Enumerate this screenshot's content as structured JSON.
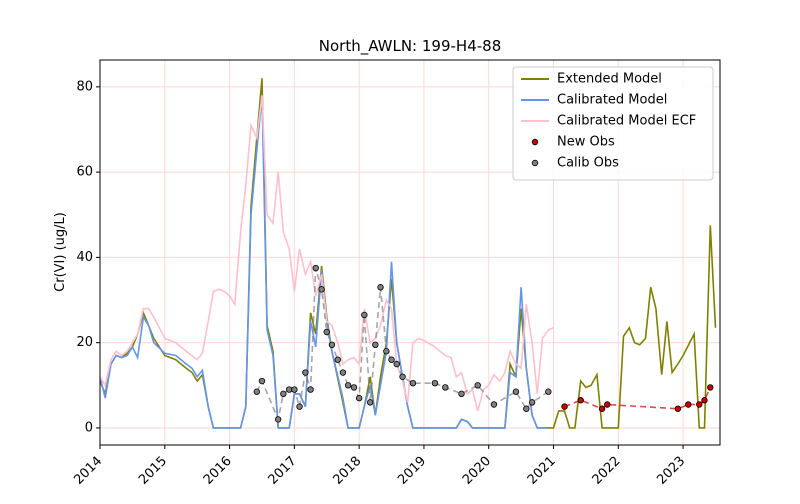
{
  "chart_data": {
    "type": "line",
    "title": "North_AWLN: 199-H4-88",
    "ylabel": "Cr(VI) (ug/L)",
    "xlim": [
      2014,
      2023.57
    ],
    "ylim": [
      -4,
      86.3
    ],
    "xticks": [
      2014,
      2015,
      2016,
      2017,
      2018,
      2019,
      2020,
      2021,
      2022,
      2023
    ],
    "yticks": [
      0,
      20,
      40,
      60,
      80
    ],
    "grid": true,
    "legend": "upper right",
    "series": [
      {
        "name": "Extended Model",
        "color": "#808000",
        "style": "line",
        "x": [
          2014.0,
          2014.08,
          2014.17,
          2014.25,
          2014.33,
          2014.42,
          2014.5,
          2014.58,
          2014.67,
          2014.75,
          2014.83,
          2015.0,
          2015.17,
          2015.33,
          2015.42,
          2015.5,
          2015.58,
          2015.67,
          2015.75,
          2016.0,
          2016.17,
          2016.25,
          2016.33,
          2016.42,
          2016.5,
          2016.58,
          2016.67,
          2016.75,
          2016.92,
          2017.0,
          2017.08,
          2017.17,
          2017.25,
          2017.33,
          2017.42,
          2017.5,
          2017.58,
          2017.75,
          2017.83,
          2018.0,
          2018.08,
          2018.17,
          2018.25,
          2018.33,
          2018.42,
          2018.5,
          2018.58,
          2018.67,
          2018.75,
          2018.83,
          2019.5,
          2019.58,
          2019.67,
          2019.75,
          2020.25,
          2020.33,
          2020.42,
          2020.5,
          2020.58,
          2020.67,
          2020.75,
          2021.0,
          2021.08,
          2021.17,
          2021.25,
          2021.33,
          2021.42,
          2021.5,
          2021.58,
          2021.67,
          2021.75,
          2022.0,
          2022.08,
          2022.17,
          2022.25,
          2022.33,
          2022.42,
          2022.5,
          2022.58,
          2022.67,
          2022.75,
          2022.83,
          2022.92,
          2023.0,
          2023.17,
          2023.25,
          2023.33,
          2023.42,
          2023.5
        ],
        "values": [
          11,
          8,
          15,
          17,
          16.5,
          17.5,
          19,
          22,
          27,
          24,
          21,
          17,
          16,
          14,
          13,
          11,
          12.5,
          5,
          0,
          0,
          0,
          5,
          52,
          68,
          82,
          24,
          18,
          0,
          0,
          8,
          8,
          5,
          27,
          22,
          38,
          26,
          18,
          6,
          0,
          0,
          5,
          12,
          3,
          12,
          20,
          35,
          20,
          12,
          5,
          0,
          0,
          2,
          1.5,
          0,
          0,
          15,
          12,
          28,
          14,
          3,
          0,
          0,
          4,
          4,
          0,
          0,
          11,
          9.5,
          10,
          12.5,
          0,
          0,
          21.5,
          23.5,
          20,
          19.5,
          21,
          33,
          28,
          12.5,
          25,
          13,
          15,
          17,
          22,
          0,
          0,
          47.5,
          23.5
        ]
      },
      {
        "name": "Calibrated Model",
        "color": "#6495ed",
        "style": "line",
        "x": [
          2014.0,
          2014.08,
          2014.17,
          2014.25,
          2014.33,
          2014.42,
          2014.5,
          2014.58,
          2014.67,
          2014.75,
          2014.83,
          2015.0,
          2015.17,
          2015.33,
          2015.42,
          2015.5,
          2015.58,
          2015.67,
          2015.75,
          2016.0,
          2016.17,
          2016.25,
          2016.33,
          2016.42,
          2016.5,
          2016.58,
          2016.67,
          2016.75,
          2016.92,
          2017.0,
          2017.08,
          2017.17,
          2017.25,
          2017.33,
          2017.42,
          2017.5,
          2017.58,
          2017.75,
          2017.83,
          2018.0,
          2018.08,
          2018.17,
          2018.25,
          2018.33,
          2018.42,
          2018.5,
          2018.58,
          2018.67,
          2018.75,
          2018.83,
          2019.5,
          2019.58,
          2019.67,
          2019.75,
          2020.25,
          2020.33,
          2020.42,
          2020.5,
          2020.58,
          2020.67,
          2020.75,
          2020.9
        ],
        "values": [
          12,
          7,
          15,
          17,
          16.5,
          17,
          19,
          16.5,
          26,
          24,
          20,
          17.5,
          17,
          15,
          14,
          12,
          13.5,
          5,
          0,
          0,
          0,
          5,
          50,
          65,
          78,
          23,
          17,
          0,
          0,
          8,
          8,
          5,
          25,
          19,
          37,
          25,
          18,
          7,
          0,
          0,
          5,
          10,
          3,
          10,
          18,
          39,
          20,
          12,
          5,
          0,
          0,
          2,
          1.5,
          0,
          0,
          13,
          12,
          33,
          14,
          3,
          0,
          0
        ]
      },
      {
        "name": "Calibrated Model ECF",
        "color": "#ffc0cb",
        "style": "line",
        "x": [
          2014.0,
          2014.08,
          2014.17,
          2014.25,
          2014.33,
          2014.42,
          2014.5,
          2014.58,
          2014.67,
          2014.75,
          2014.83,
          2015.0,
          2015.17,
          2015.33,
          2015.5,
          2015.58,
          2015.67,
          2015.75,
          2015.83,
          2015.92,
          2016.0,
          2016.08,
          2016.17,
          2016.25,
          2016.33,
          2016.42,
          2016.5,
          2016.58,
          2016.67,
          2016.75,
          2016.83,
          2016.92,
          2017.0,
          2017.08,
          2017.17,
          2017.25,
          2017.33,
          2017.42,
          2017.5,
          2017.58,
          2017.67,
          2017.75,
          2017.83,
          2017.92,
          2018.0,
          2018.08,
          2018.17,
          2018.25,
          2018.33,
          2018.42,
          2018.5,
          2018.58,
          2018.67,
          2018.75,
          2018.83,
          2018.92,
          2019.0,
          2019.17,
          2019.33,
          2019.42,
          2019.5,
          2019.58,
          2019.67,
          2019.75,
          2019.83,
          2019.92,
          2020.0,
          2020.08,
          2020.17,
          2020.25,
          2020.33,
          2020.42,
          2020.5,
          2020.58,
          2020.67,
          2020.75,
          2020.83,
          2020.92,
          2021.0
        ],
        "values": [
          12,
          10,
          16,
          18,
          17,
          18,
          20,
          22,
          28,
          28,
          26,
          21,
          20,
          18,
          16,
          17.5,
          25,
          32,
          32.5,
          32,
          31,
          29,
          46,
          57,
          71,
          68,
          78,
          50,
          48,
          60,
          46,
          42,
          32,
          42,
          36,
          39,
          31,
          36,
          25,
          24,
          20,
          15,
          16,
          16.5,
          15,
          28,
          20,
          21,
          24,
          30,
          28,
          15,
          11,
          6,
          20,
          21,
          20.5,
          19,
          17,
          16.5,
          12,
          13,
          8,
          9,
          4,
          9,
          10,
          12.5,
          11,
          13,
          18,
          15,
          14,
          29,
          20,
          8,
          21,
          23,
          23.5
        ]
      },
      {
        "name": "New Obs",
        "color": "#cc0000",
        "style": "scatter",
        "x": [
          2021.17,
          2021.42,
          2021.75,
          2021.83,
          2022.92,
          2023.08,
          2023.25,
          2023.33,
          2023.42
        ],
        "values": [
          5,
          6.5,
          4.5,
          5.5,
          4.5,
          5.5,
          5.5,
          6.5,
          9.5
        ]
      },
      {
        "name": "Calib Obs",
        "color": "#808080",
        "style": "scatter",
        "x": [
          2016.42,
          2016.5,
          2016.75,
          2016.83,
          2016.92,
          2017.0,
          2017.08,
          2017.17,
          2017.25,
          2017.33,
          2017.42,
          2017.5,
          2017.58,
          2017.67,
          2017.75,
          2017.83,
          2017.92,
          2018.0,
          2018.08,
          2018.17,
          2018.25,
          2018.33,
          2018.42,
          2018.5,
          2018.58,
          2018.67,
          2018.83,
          2019.17,
          2019.33,
          2019.58,
          2019.83,
          2020.08,
          2020.42,
          2020.58,
          2020.67,
          2020.92
        ],
        "values": [
          8.5,
          11,
          2,
          8,
          9,
          9,
          5,
          13,
          9,
          37.5,
          32.5,
          22.5,
          19.5,
          16,
          13,
          10,
          9.5,
          7,
          26.5,
          6,
          19.5,
          33,
          18,
          16,
          15,
          12,
          10.5,
          10.5,
          9.5,
          8,
          10,
          5.5,
          8.5,
          4.5,
          6,
          8.5
        ]
      }
    ]
  }
}
